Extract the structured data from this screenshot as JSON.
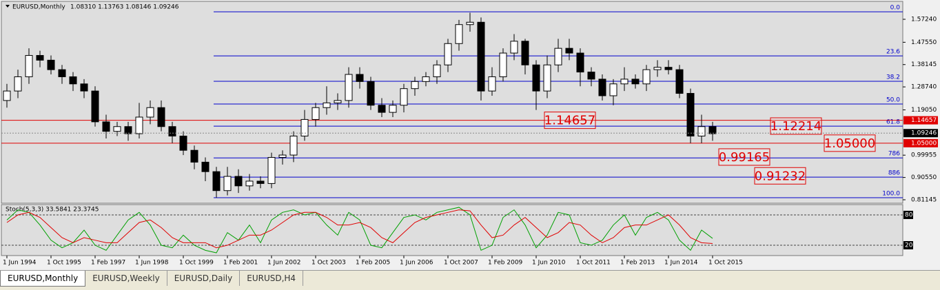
{
  "chart_data": [
    {
      "type": "candlestick",
      "title": "EURUSD,Monthly",
      "subtitle": "1.08310 1.13763 1.08146 1.09246",
      "x": [
        "1 Jun 1994",
        null,
        null,
        null,
        "1 Oct 1995",
        null,
        null,
        null,
        "1 Feb 1997",
        null,
        null,
        null,
        "1 Jun 1998",
        null,
        null,
        null,
        "1 Oct 1999",
        null,
        null,
        null,
        "1 Feb 2001",
        null,
        null,
        null,
        "1 Jun 2002",
        null,
        null,
        null,
        "1 Oct 2003",
        null,
        null,
        null,
        "1 Feb 2005",
        null,
        null,
        null,
        "1 Jun 2006",
        null,
        null,
        null,
        "1 Oct 2007",
        null,
        null,
        null,
        "1 Feb 2009",
        null,
        null,
        null,
        "1 Jun 2010",
        null,
        null,
        null,
        "1 Oct 2011",
        null,
        null,
        null,
        "1 Feb 2013",
        null,
        null,
        null,
        "1 Jun 2014",
        null,
        null,
        null,
        "1 Oct 2015"
      ],
      "open": [
        1.23,
        1.27,
        1.33,
        1.42,
        1.4,
        1.36,
        1.33,
        1.3,
        1.27,
        1.14,
        1.1,
        1.12,
        1.09,
        1.16,
        1.2,
        1.12,
        1.08,
        1.02,
        0.97,
        0.93,
        0.85,
        0.91,
        0.87,
        0.89,
        0.88,
        0.99,
        1.0,
        1.08,
        1.15,
        1.2,
        1.22,
        1.23,
        1.34,
        1.31,
        1.21,
        1.18,
        1.21,
        1.28,
        1.31,
        1.33,
        1.38,
        1.47,
        1.55,
        1.56,
        1.27,
        1.33,
        1.43,
        1.48,
        1.38,
        1.27,
        1.38,
        1.45,
        1.43,
        1.35,
        1.32,
        1.25,
        1.3,
        1.32,
        1.3,
        1.36,
        1.37,
        1.36,
        1.26,
        1.08,
        1.12
      ],
      "high": [
        1.3,
        1.36,
        1.45,
        1.44,
        1.42,
        1.38,
        1.35,
        1.32,
        1.29,
        1.17,
        1.14,
        1.14,
        1.22,
        1.23,
        1.23,
        1.14,
        1.1,
        1.04,
        0.99,
        0.95,
        0.95,
        0.94,
        0.92,
        0.91,
        1.01,
        1.02,
        1.1,
        1.19,
        1.22,
        1.29,
        1.26,
        1.37,
        1.37,
        1.33,
        1.24,
        1.23,
        1.3,
        1.33,
        1.35,
        1.4,
        1.49,
        1.57,
        1.6,
        1.58,
        1.37,
        1.45,
        1.51,
        1.49,
        1.4,
        1.42,
        1.49,
        1.49,
        1.45,
        1.37,
        1.34,
        1.32,
        1.37,
        1.34,
        1.38,
        1.4,
        1.4,
        1.38,
        1.28,
        1.17,
        1.14
      ],
      "low": [
        1.2,
        1.24,
        1.3,
        1.37,
        1.34,
        1.3,
        1.27,
        1.24,
        1.12,
        1.07,
        1.08,
        1.06,
        1.07,
        1.13,
        1.1,
        1.05,
        1.0,
        0.94,
        0.89,
        0.82,
        0.83,
        0.84,
        0.85,
        0.86,
        0.86,
        0.96,
        0.97,
        1.06,
        1.12,
        1.17,
        1.19,
        1.2,
        1.28,
        1.19,
        1.16,
        1.16,
        1.18,
        1.25,
        1.29,
        1.3,
        1.35,
        1.44,
        1.52,
        1.23,
        1.25,
        1.31,
        1.4,
        1.34,
        1.19,
        1.24,
        1.35,
        1.4,
        1.29,
        1.29,
        1.23,
        1.21,
        1.27,
        1.28,
        1.27,
        1.33,
        1.34,
        1.24,
        1.05,
        1.05,
        1.06
      ],
      "close": [
        1.27,
        1.33,
        1.42,
        1.4,
        1.36,
        1.33,
        1.3,
        1.27,
        1.14,
        1.1,
        1.12,
        1.09,
        1.16,
        1.2,
        1.12,
        1.08,
        1.02,
        0.97,
        0.93,
        0.85,
        0.91,
        0.87,
        0.89,
        0.88,
        0.99,
        1.0,
        1.08,
        1.15,
        1.2,
        1.22,
        1.23,
        1.34,
        1.31,
        1.21,
        1.18,
        1.21,
        1.28,
        1.31,
        1.33,
        1.38,
        1.47,
        1.55,
        1.56,
        1.27,
        1.33,
        1.43,
        1.48,
        1.38,
        1.27,
        1.38,
        1.45,
        1.43,
        1.35,
        1.32,
        1.25,
        1.3,
        1.32,
        1.3,
        1.36,
        1.37,
        1.36,
        1.26,
        1.08,
        1.12,
        1.09
      ],
      "bull_color": "#ffffff",
      "bear_color": "#000000",
      "ylim": [
        0.7969,
        1.6363
      ],
      "yticks": [
        {
          "value": 1.5724,
          "label": "1.57240"
        },
        {
          "value": 1.4755,
          "label": "1.47550"
        },
        {
          "value": 1.38145,
          "label": "1.38145"
        },
        {
          "value": 1.2874,
          "label": "1.28740"
        },
        {
          "value": 1.1905,
          "label": "1.19050"
        },
        {
          "value": 0.99955,
          "label": "0.99955"
        },
        {
          "value": 0.9055,
          "label": "0.90550"
        },
        {
          "value": 0.81145,
          "label": "0.81145"
        }
      ],
      "current_price": {
        "value": 1.09246,
        "label": "1.09246"
      },
      "fibo_color": "#0000cc",
      "fibo_levels": [
        {
          "value": 1.604,
          "label": "0.0"
        },
        {
          "value": 1.418,
          "label": "23.6"
        },
        {
          "value": 1.311,
          "label": "38.2"
        },
        {
          "value": 1.215,
          "label": "50.0"
        },
        {
          "value": 1.122,
          "label": "61.8"
        },
        {
          "value": 0.988,
          "label": "786"
        },
        {
          "value": 0.907,
          "label": "886"
        },
        {
          "value": 0.82,
          "label": "100.0"
        }
      ],
      "annotation_color": "#e00000",
      "annotations": [
        {
          "value": 1.14657,
          "label": "1.14657",
          "line": true
        },
        {
          "value": 1.12214,
          "label": "1.12214",
          "line": false
        },
        {
          "value": 1.05,
          "label": "1.05000",
          "line": true
        },
        {
          "value": 0.99165,
          "label": "0.99165",
          "line": false
        },
        {
          "value": 0.91232,
          "label": "0.91232",
          "line": false
        }
      ]
    },
    {
      "type": "stochastic",
      "title": "Stoch(5,3,3) 33.5841 23.3745",
      "series": [
        {
          "color": "#00a000",
          "values": [
            70,
            90,
            85,
            60,
            30,
            15,
            25,
            50,
            20,
            10,
            40,
            70,
            85,
            60,
            20,
            15,
            40,
            20,
            10,
            5,
            45,
            30,
            60,
            25,
            70,
            85,
            90,
            80,
            85,
            60,
            40,
            85,
            70,
            20,
            15,
            45,
            75,
            80,
            70,
            85,
            90,
            95,
            80,
            10,
            20,
            75,
            90,
            60,
            15,
            40,
            85,
            80,
            25,
            20,
            30,
            60,
            80,
            40,
            75,
            85,
            70,
            30,
            10,
            50,
            33.5841
          ]
        },
        {
          "color": "#e00000",
          "values": [
            65,
            80,
            85,
            75,
            55,
            35,
            25,
            35,
            30,
            25,
            25,
            45,
            65,
            70,
            55,
            35,
            25,
            25,
            25,
            15,
            20,
            30,
            40,
            40,
            50,
            65,
            80,
            85,
            85,
            75,
            60,
            60,
            65,
            55,
            35,
            25,
            45,
            65,
            75,
            80,
            85,
            90,
            88,
            60,
            35,
            40,
            60,
            75,
            55,
            35,
            45,
            65,
            60,
            40,
            25,
            35,
            55,
            60,
            60,
            70,
            80,
            60,
            35,
            25,
            23.3745
          ]
        }
      ],
      "ylim": [
        0,
        100
      ],
      "levels": [
        80,
        20
      ]
    }
  ],
  "tabs": [
    "EURUSD,Monthly",
    "EURUSD,Weekly",
    "EURUSD,Daily",
    "EURUSD,H4"
  ]
}
